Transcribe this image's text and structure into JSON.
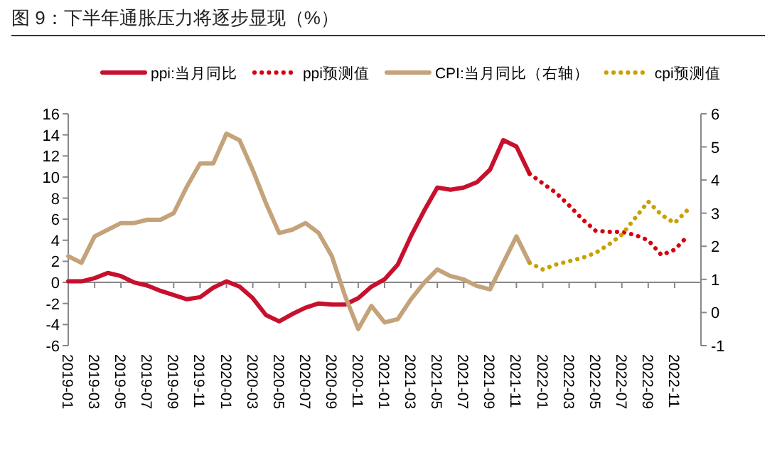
{
  "chart_data": {
    "type": "line",
    "title": "图 9：下半年通胀压力将逐步显现（%）",
    "categories": [
      "2019-01",
      null,
      "2019-03",
      null,
      "2019-05",
      null,
      "2019-07",
      null,
      "2019-09",
      null,
      "2019-11",
      null,
      "2020-01",
      null,
      "2020-03",
      null,
      "2020-05",
      null,
      "2020-07",
      null,
      "2020-09",
      null,
      "2020-11",
      null,
      "2021-01",
      null,
      "2021-03",
      null,
      "2021-05",
      null,
      "2021-07",
      null,
      "2021-09",
      null,
      "2021-11",
      null,
      "2022-01",
      null,
      "2022-03",
      null,
      "2022-05",
      null,
      "2022-07",
      null,
      "2022-09",
      null,
      "2022-11",
      null
    ],
    "ylim": [
      -6,
      16
    ],
    "yticks": [
      -6,
      -4,
      -2,
      0,
      2,
      4,
      6,
      8,
      10,
      12,
      14,
      16
    ],
    "y2lim": [
      -1,
      6
    ],
    "y2ticks": [
      -1,
      0,
      1,
      2,
      3,
      4,
      5,
      6
    ],
    "legend": "top",
    "series": [
      {
        "name": "ppi:当月同比",
        "color": "#c8102e",
        "line_style": "solid",
        "values": [
          0.1,
          0.1,
          0.4,
          0.9,
          0.6,
          0,
          -0.3,
          -0.8,
          -1.2,
          -1.6,
          -1.4,
          -0.5,
          0.1,
          -0.4,
          -1.5,
          -3.1,
          -3.7,
          -3.0,
          -2.4,
          -2.0,
          -2.1,
          -2.1,
          -1.5,
          -0.4,
          0.3,
          1.7,
          4.4,
          6.8,
          9.0,
          8.8,
          9.0,
          9.5,
          10.7,
          13.5,
          12.9,
          10.3,
          null,
          null,
          null,
          null,
          null,
          null,
          null,
          null,
          null,
          null,
          null,
          null
        ]
      },
      {
        "name": "ppi预测值",
        "color": "#d7000f",
        "line_style": "dotted",
        "values": [
          null,
          null,
          null,
          null,
          null,
          null,
          null,
          null,
          null,
          null,
          null,
          null,
          null,
          null,
          null,
          null,
          null,
          null,
          null,
          null,
          null,
          null,
          null,
          null,
          null,
          null,
          null,
          null,
          null,
          null,
          null,
          null,
          null,
          null,
          null,
          10.3,
          9.4,
          8.5,
          7.3,
          6.0,
          4.9,
          4.8,
          4.8,
          4.5,
          4.0,
          2.6,
          3.1,
          4.4
        ]
      },
      {
        "name": "CPI:当月同比（右轴）",
        "color": "#c4a27a",
        "line_style": "solid",
        "axis": "y2",
        "values": [
          1.7,
          1.5,
          2.3,
          2.5,
          2.7,
          2.7,
          2.8,
          2.8,
          3.0,
          3.8,
          4.5,
          4.5,
          5.4,
          5.2,
          4.3,
          3.3,
          2.4,
          2.5,
          2.7,
          2.4,
          1.7,
          0.5,
          -0.5,
          0.2,
          -0.3,
          -0.2,
          0.4,
          0.9,
          1.3,
          1.1,
          1.0,
          0.8,
          0.7,
          1.5,
          2.3,
          1.5,
          null,
          null,
          null,
          null,
          null,
          null,
          null,
          null,
          null,
          null,
          null,
          null
        ]
      },
      {
        "name": "cpi预测值",
        "color": "#c9a000",
        "line_style": "dotted",
        "axis": "y2",
        "values": [
          null,
          null,
          null,
          null,
          null,
          null,
          null,
          null,
          null,
          null,
          null,
          null,
          null,
          null,
          null,
          null,
          null,
          null,
          null,
          null,
          null,
          null,
          null,
          null,
          null,
          null,
          null,
          null,
          null,
          null,
          null,
          null,
          null,
          null,
          null,
          1.5,
          1.3,
          1.45,
          1.55,
          1.65,
          1.8,
          2.05,
          2.35,
          2.85,
          3.35,
          2.95,
          2.7,
          3.1
        ]
      }
    ]
  }
}
